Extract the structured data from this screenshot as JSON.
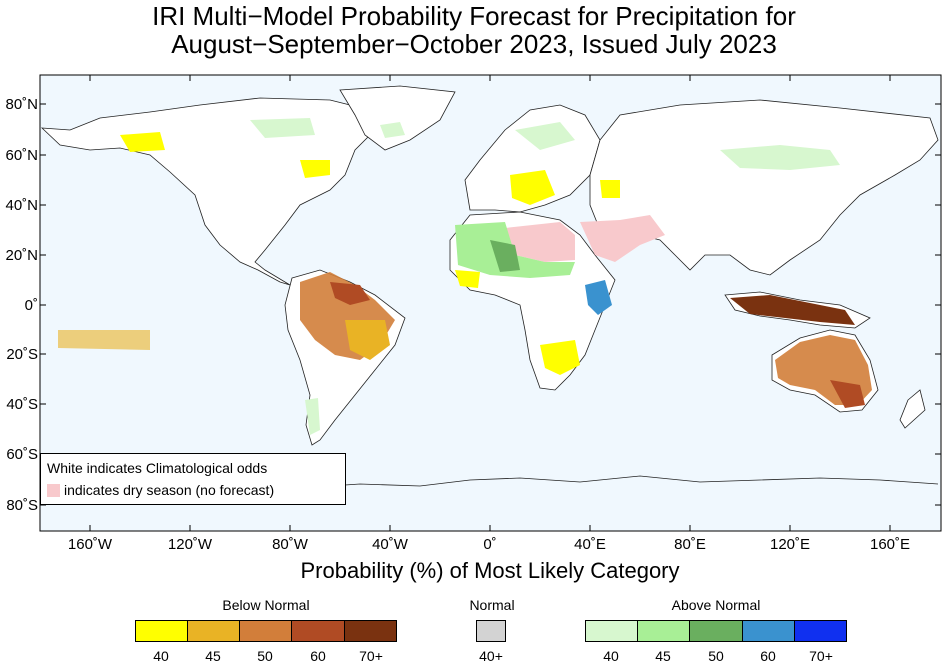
{
  "title_line1": "IRI Multi−Model Probability Forecast for Precipitation for",
  "title_line2": "August−September−October 2023, Issued July 2023",
  "x_axis_title": "Probability (%) of Most Likely Category",
  "lon_ticks": [
    "160˚W",
    "120˚W",
    "80˚W",
    "40˚W",
    "0˚",
    "40˚E",
    "80˚E",
    "120˚E",
    "160˚E"
  ],
  "lat_ticks": [
    "80˚N",
    "60˚N",
    "40˚N",
    "20˚N",
    "0˚",
    "20˚S",
    "40˚S",
    "60˚S",
    "80˚S"
  ],
  "legend_note": {
    "line1": "White indicates Climatological odds",
    "line2": "indicates dry season (no forecast)"
  },
  "categories": {
    "below": {
      "title": "Below Normal",
      "labels": [
        "40",
        "45",
        "50",
        "60",
        "70+"
      ],
      "colors": [
        "#ffff00",
        "#e9b325",
        "#d27e3a",
        "#b04b24",
        "#7a3210"
      ]
    },
    "normal": {
      "title": "Normal",
      "labels": [
        "40+"
      ],
      "colors": [
        "#d3d3d3"
      ]
    },
    "above": {
      "title": "Above Normal",
      "labels": [
        "40",
        "45",
        "50",
        "60",
        "70+"
      ],
      "colors": [
        "#d7f7cf",
        "#a8ef96",
        "#6aaf5f",
        "#3a92cf",
        "#1030f0"
      ]
    }
  },
  "colors": {
    "ocean": "#f0f8fe",
    "land": "#ffffff",
    "dry_season": "#f8c9cc"
  }
}
